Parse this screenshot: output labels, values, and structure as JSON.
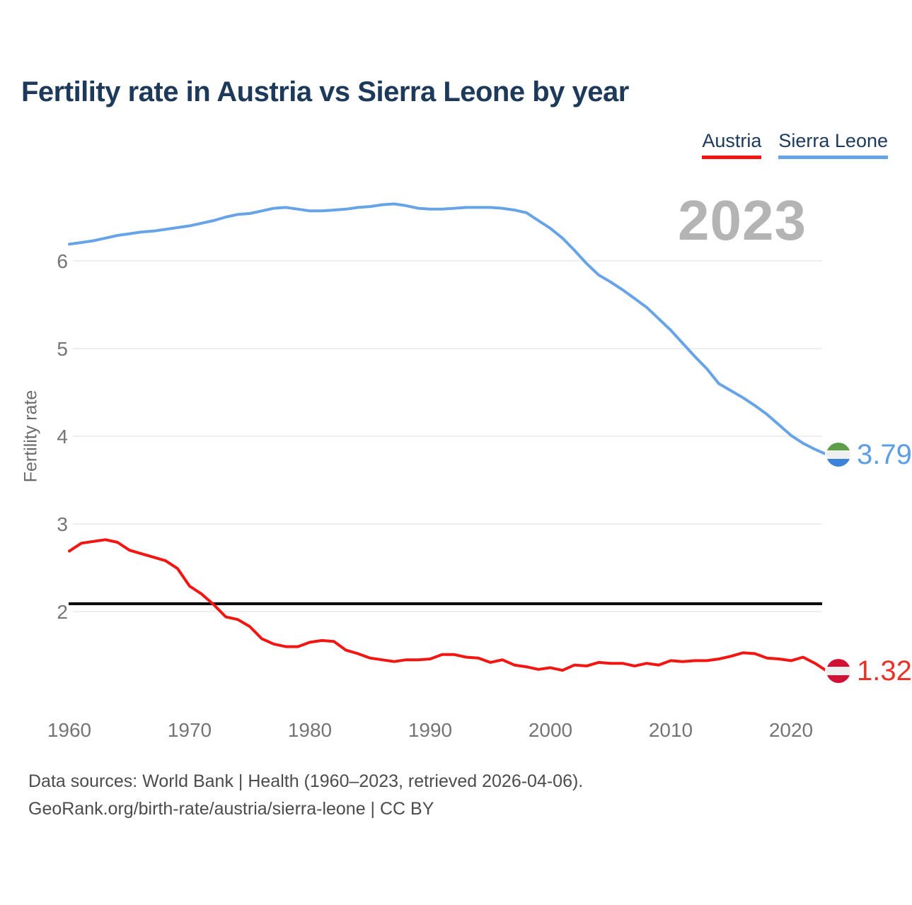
{
  "title": "Fertility rate in Austria vs Sierra Leone by year",
  "watermark": "2023",
  "ylabel": "Fertility rate",
  "footer": {
    "line1": "Data sources: World Bank | Health (1960–2023, retrieved 2026-04-06).",
    "line2": "GeoRank.org/birth-rate/austria/sierra-leone | CC BY"
  },
  "colors": {
    "title_navy": "#1d3a5a",
    "tick_gray": "#757575",
    "gridline": "#e9e9e9",
    "watermark_gray": "#b4b4b4",
    "footer_gray": "#4c4c4c",
    "reference_black": "#000000"
  },
  "chart_data": {
    "type": "line",
    "title": "Fertility rate in Austria vs Sierra Leone by year",
    "xlabel": "",
    "ylabel": "Fertility rate",
    "grid": "horizontal",
    "grid_color": "#e9e9e9",
    "tick_color": "#757575",
    "legend_position": "top-right",
    "xlim": [
      1960,
      2023
    ],
    "ylim": [
      0.9,
      6.8
    ],
    "xticks": [
      1960,
      1970,
      1980,
      1990,
      2000,
      2010,
      2020
    ],
    "yticks": [
      2,
      3,
      4,
      5,
      6
    ],
    "reference_line": {
      "value": 2.09,
      "color": "#000000",
      "note": "replacement-level line shown in black"
    },
    "x": [
      1960,
      1961,
      1962,
      1963,
      1964,
      1965,
      1966,
      1967,
      1968,
      1969,
      1970,
      1971,
      1972,
      1973,
      1974,
      1975,
      1976,
      1977,
      1978,
      1979,
      1980,
      1981,
      1982,
      1983,
      1984,
      1985,
      1986,
      1987,
      1988,
      1989,
      1990,
      1991,
      1992,
      1993,
      1994,
      1995,
      1996,
      1997,
      1998,
      1999,
      2000,
      2001,
      2002,
      2003,
      2004,
      2005,
      2006,
      2007,
      2008,
      2009,
      2010,
      2011,
      2012,
      2013,
      2014,
      2015,
      2016,
      2017,
      2018,
      2019,
      2020,
      2021,
      2022,
      2023
    ],
    "series": [
      {
        "name": "Austria",
        "color": "#f31511",
        "value_color": "#ea3328",
        "end_label": "1.32",
        "flag": "austria-flag",
        "flag_stripes": [
          "#d21034",
          "#efefef",
          "#d21034"
        ],
        "values": [
          2.69,
          2.78,
          2.8,
          2.82,
          2.79,
          2.7,
          2.66,
          2.62,
          2.58,
          2.49,
          2.29,
          2.2,
          2.08,
          1.94,
          1.91,
          1.83,
          1.69,
          1.63,
          1.6,
          1.6,
          1.65,
          1.67,
          1.66,
          1.56,
          1.52,
          1.47,
          1.45,
          1.43,
          1.45,
          1.45,
          1.46,
          1.51,
          1.51,
          1.48,
          1.47,
          1.42,
          1.45,
          1.39,
          1.37,
          1.34,
          1.36,
          1.33,
          1.39,
          1.38,
          1.42,
          1.41,
          1.41,
          1.38,
          1.41,
          1.39,
          1.44,
          1.43,
          1.44,
          1.44,
          1.46,
          1.49,
          1.53,
          1.52,
          1.47,
          1.46,
          1.44,
          1.48,
          1.41,
          1.32
        ]
      },
      {
        "name": "Sierra Leone",
        "color": "#67a4e7",
        "value_color": "#5c9ee4",
        "end_label": "3.79",
        "flag": "sierra-leone-flag",
        "flag_stripes": [
          "#5f9e48",
          "#efefef",
          "#3b82d8"
        ],
        "values": [
          6.19,
          6.21,
          6.23,
          6.26,
          6.29,
          6.31,
          6.33,
          6.34,
          6.36,
          6.38,
          6.4,
          6.43,
          6.46,
          6.5,
          6.53,
          6.54,
          6.57,
          6.6,
          6.61,
          6.59,
          6.57,
          6.57,
          6.58,
          6.59,
          6.61,
          6.62,
          6.64,
          6.65,
          6.63,
          6.6,
          6.59,
          6.59,
          6.6,
          6.61,
          6.61,
          6.61,
          6.6,
          6.58,
          6.55,
          6.46,
          6.37,
          6.26,
          6.12,
          5.97,
          5.84,
          5.76,
          5.67,
          5.57,
          5.47,
          5.34,
          5.21,
          5.06,
          4.91,
          4.77,
          4.6,
          4.52,
          4.44,
          4.35,
          4.25,
          4.13,
          4.01,
          3.92,
          3.85,
          3.79
        ]
      }
    ]
  }
}
